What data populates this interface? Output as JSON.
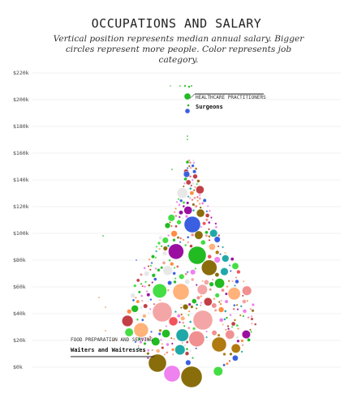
{
  "chart_data": {
    "type": "scatter",
    "title": "OCCUPATIONS AND SALARY",
    "subtitle": "Vertical position represents median annual salary. Bigger circles represent more people. Color represents job category.",
    "xlabel": "",
    "ylabel": "",
    "ylim": [
      0,
      220000
    ],
    "yticks": [
      {
        "value": 0,
        "label": "$0k"
      },
      {
        "value": 20000,
        "label": "$20k"
      },
      {
        "value": 40000,
        "label": "$40k"
      },
      {
        "value": 60000,
        "label": "$60k"
      },
      {
        "value": 80000,
        "label": "$80k"
      },
      {
        "value": 100000,
        "label": "$100k"
      },
      {
        "value": 120000,
        "label": "$120k"
      },
      {
        "value": 140000,
        "label": "$140k"
      },
      {
        "value": 160000,
        "label": "$160k"
      },
      {
        "value": 180000,
        "label": "$180k"
      },
      {
        "value": 200000,
        "label": "$200k"
      },
      {
        "value": 220000,
        "label": "$220k"
      }
    ],
    "grid": true,
    "annotations": [
      {
        "category": "HEALTHCARE PRACTITIONERS",
        "occupation": "Surgeons",
        "salary": 201000,
        "color": "#22bb22",
        "side": "right"
      },
      {
        "category": "FOOD PREPARATION AND SERVING",
        "occupation": "Waiters and Waitresses",
        "salary": 4000,
        "color": "#8a6d0b",
        "side": "left"
      }
    ],
    "palette": [
      "#f2545b",
      "#ff8c42",
      "#f4a6a6",
      "#e8e8e8",
      "#b07a10",
      "#8a6d0b",
      "#44dd44",
      "#22bb22",
      "#9b0fa0",
      "#ee82ee",
      "#3a5fe0",
      "#20a8a8",
      "#ffb27a",
      "#c33f46",
      "#f09090"
    ]
  }
}
